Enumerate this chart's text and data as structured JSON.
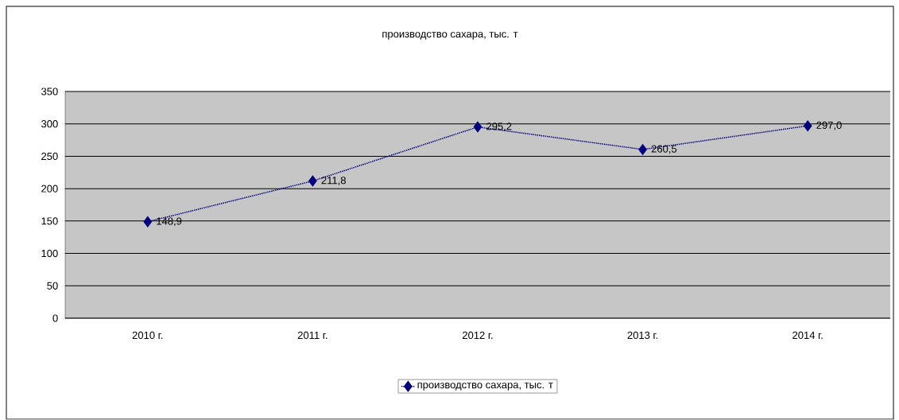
{
  "chart_data": {
    "type": "line",
    "title": "производство сахара, тыс. т",
    "categories": [
      "2010 г.",
      "2011 г.",
      "2012 г.",
      "2013 г.",
      "2014 г."
    ],
    "series": [
      {
        "name": "производство сахара, тыс. т",
        "color": "#000080",
        "values": [
          148.9,
          211.8,
          295.2,
          260.5,
          297.0
        ],
        "value_labels": [
          "148,9",
          "211,8",
          "295,2",
          "260,5",
          "297,0"
        ]
      }
    ],
    "ylim": [
      0,
      350
    ],
    "yticks": [
      0,
      50,
      100,
      150,
      200,
      250,
      300,
      350
    ],
    "grid": "y",
    "legend": "bottom",
    "marker": "diamond",
    "line_style": "dotted"
  }
}
